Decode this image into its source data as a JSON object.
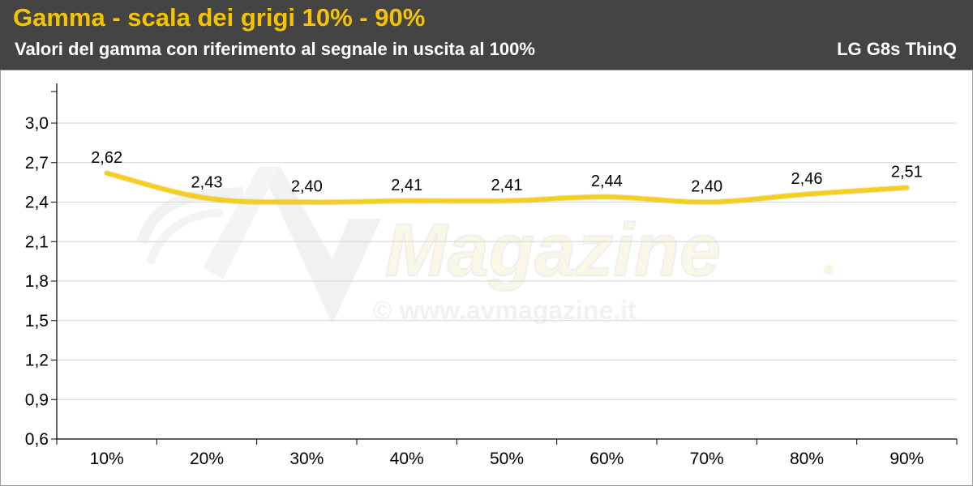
{
  "header": {
    "title": "Gamma - scala dei grigi 10% - 90%",
    "subtitle": "Valori del gamma con riferimento al segnale in uscita al 100%",
    "device": "LG G8s ThinQ"
  },
  "watermark": {
    "brand": "Magazine",
    "url": "© www.avmagazine.it"
  },
  "colors": {
    "header_bg": "#444444",
    "title": "#f5c400",
    "line": "#f5cf1a",
    "grid": "#d6d6d6"
  },
  "chart_data": {
    "type": "line",
    "title": "Gamma - scala dei grigi 10% - 90%",
    "subtitle": "Valori del gamma con riferimento al segnale in uscita al 100%",
    "categories": [
      "10%",
      "20%",
      "30%",
      "40%",
      "50%",
      "60%",
      "70%",
      "80%",
      "90%"
    ],
    "series": [
      {
        "values": [
          2.62,
          2.43,
          2.4,
          2.41,
          2.41,
          2.44,
          2.4,
          2.46,
          2.51
        ],
        "labels": [
          "2,62",
          "2,43",
          "2,40",
          "2,41",
          "2,41",
          "2,44",
          "2,40",
          "2,46",
          "2,51"
        ]
      }
    ],
    "ylim": [
      0.6,
      3.0
    ],
    "yticks": [
      0.6,
      0.9,
      1.2,
      1.5,
      1.8,
      2.1,
      2.4,
      2.7,
      3.0
    ],
    "ytick_labels": [
      "0,6",
      "0,9",
      "1,2",
      "1,5",
      "1,8",
      "2,1",
      "2,4",
      "2,7",
      "3,0"
    ],
    "grid": true,
    "legend": "none",
    "xlabel": "",
    "ylabel": ""
  }
}
